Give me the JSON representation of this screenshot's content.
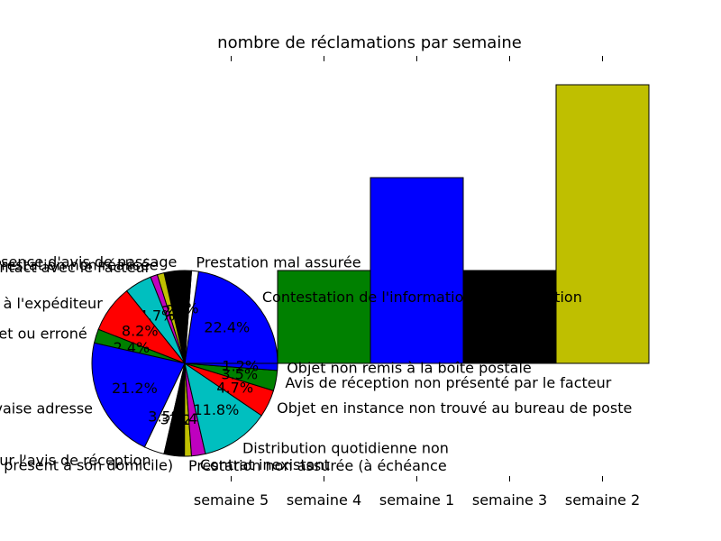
{
  "chart_data": [
    {
      "type": "bar",
      "title": "nombre de réclamations par semaine",
      "categories": [
        "semaine 5",
        "semaine 4",
        "semaine 1",
        "semaine 3",
        "semaine 2"
      ],
      "values": [
        0,
        1,
        2,
        1,
        3
      ],
      "colors": [
        "#0000ff",
        "#008000",
        "#0000ff",
        "#000000",
        "#bfbf00"
      ],
      "ylim": [
        0,
        3
      ],
      "grid": false,
      "legend": "none"
    },
    {
      "type": "pie",
      "slices": [
        {
          "label": "Contestation de l'information de distribution",
          "percent": "22.4%",
          "value": 22.4,
          "color": "#0000ff"
        },
        {
          "label": "Prestation mal assurée",
          "percent": "",
          "value": 1.2,
          "color": "#ffffff"
        },
        {
          "label": "Absence d'avis de passage",
          "percent": "4.7%",
          "value": 4.7,
          "color": "#000000"
        },
        {
          "label": "Prestation non réalisée",
          "percent": "1.2%",
          "value": 1.2,
          "color": "#bfbf00"
        },
        {
          "label": "Contact avec le Facteur",
          "percent": "1.2%",
          "value": 1.2,
          "color": "#bf00bf"
        },
        {
          "label": "",
          "percent": "4.7%",
          "value": 4.7,
          "color": "#00bfbf"
        },
        {
          "label": "Retour à l'expéditeur",
          "percent": "8.2%",
          "value": 8.2,
          "color": "#ff0000"
        },
        {
          "label": "Avis incomplet ou erroné",
          "percent": "2.4%",
          "value": 2.4,
          "color": "#008000"
        },
        {
          "label": "Distribution à mauvaise adresse",
          "percent": "21.2%",
          "value": 21.2,
          "color": "#0000ff"
        },
        {
          "label": "Contestation signature sur l'avis de réception",
          "percent": "3.5%",
          "value": 3.5,
          "color": "#ffffff"
        },
        {
          "label": "(destinataire présent à son domicile)",
          "percent": "3.5%",
          "value": 3.5,
          "color": "#000000"
        },
        {
          "label": "Prestation non assurée (à échéance",
          "percent": "1.2%",
          "value": 1.2,
          "color": "#bfbf00"
        },
        {
          "label": "Contrat inexistant",
          "percent": "2.4%",
          "value": 2.4,
          "color": "#bf00bf"
        },
        {
          "label": "Distribution quotidienne non",
          "percent": "11.8%",
          "value": 11.8,
          "color": "#00bfbf"
        },
        {
          "label": "Objet en instance non trouvé au bureau de poste",
          "percent": "4.7%",
          "value": 4.7,
          "color": "#ff0000"
        },
        {
          "label": "Avis de réception non présenté par le facteur",
          "percent": "3.5%",
          "value": 3.5,
          "color": "#008000"
        },
        {
          "label": "Objet non remis à la boîte postale",
          "percent": "1.2%",
          "value": 1.2,
          "color": "#0000ff"
        }
      ]
    }
  ]
}
